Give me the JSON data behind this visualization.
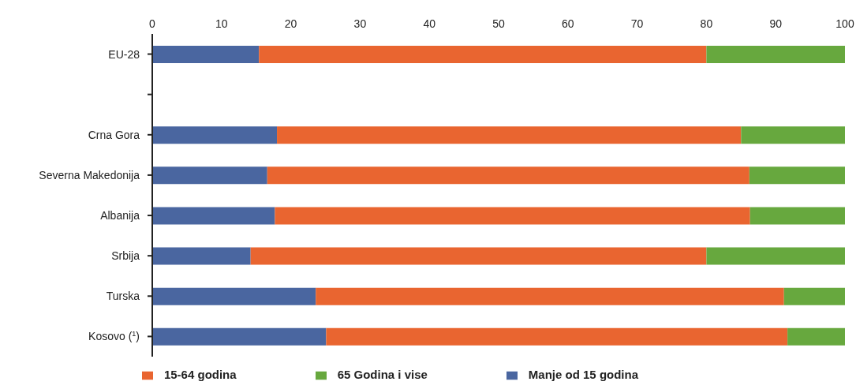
{
  "chart_data": {
    "type": "bar",
    "orientation": "horizontal",
    "stacked": true,
    "categories": [
      "EU-28",
      null,
      "Crna Gora",
      "Severna Makedonija",
      "Albanija",
      "Srbija",
      "Turska",
      "Kosovo ($^{1}$)"
    ],
    "series": [
      {
        "name": "Manje od 15 godina",
        "color": "#4a66a0",
        "values": [
          15.4,
          null,
          18.0,
          16.6,
          17.7,
          14.2,
          23.6,
          25.1
        ]
      },
      {
        "name": "15-64   godina",
        "color": "#e96530",
        "values": [
          64.6,
          null,
          67.0,
          69.6,
          68.6,
          65.8,
          67.6,
          66.6
        ]
      },
      {
        "name": "65  Godina i vise",
        "color": "#67a83e",
        "values": [
          20.0,
          null,
          15.0,
          13.8,
          13.7,
          20.0,
          8.8,
          8.3
        ]
      }
    ],
    "xlim": [
      0,
      100
    ],
    "xticks": [
      0,
      10,
      20,
      30,
      40,
      50,
      60,
      70,
      80,
      90,
      100
    ],
    "grid": false,
    "legend": "bottom"
  }
}
